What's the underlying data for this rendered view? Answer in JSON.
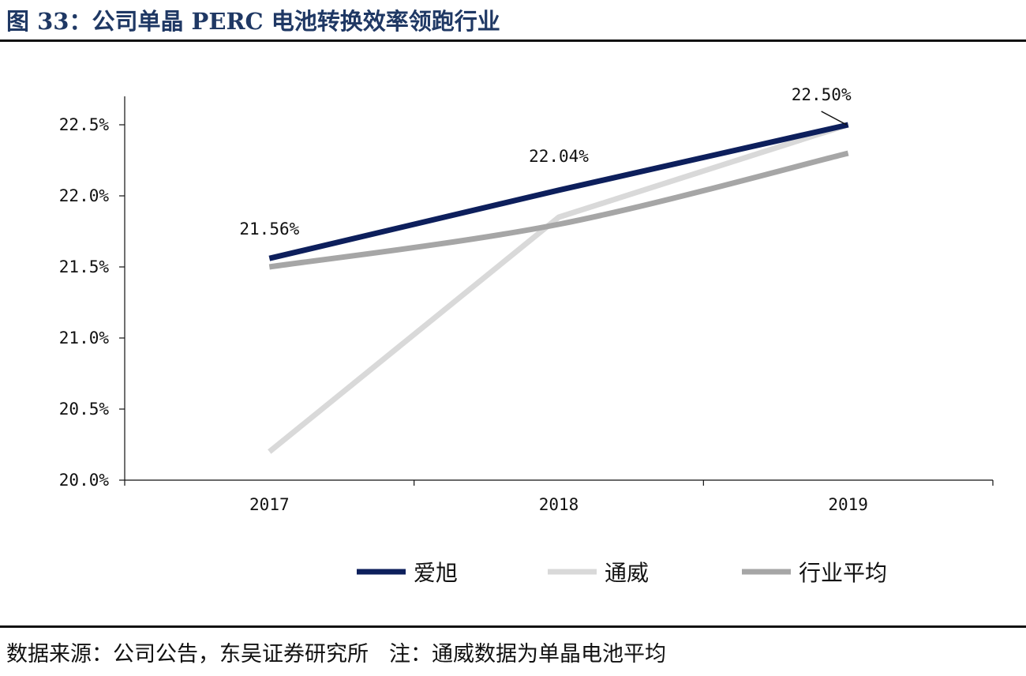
{
  "figure_title": "图 33：公司单晶 PERC 电池转换效率领跑行业",
  "source": {
    "text": "数据来源：公司公告，东吴证券研究所",
    "note": "注：通威数据为单晶电池平均"
  },
  "chart_data": {
    "type": "line",
    "title": "",
    "xlabel": "",
    "ylabel": "",
    "categories": [
      "2017",
      "2018",
      "2019"
    ],
    "ylim": [
      20.0,
      22.8
    ],
    "yticks": [
      20.0,
      20.5,
      21.0,
      21.5,
      22.0,
      22.5
    ],
    "ytick_labels": [
      "20.0%",
      "20.5%",
      "21.0%",
      "21.5%",
      "22.0%",
      "22.5%"
    ],
    "grid": false,
    "legend_position": "bottom",
    "series": [
      {
        "name": "爱旭",
        "values": [
          21.56,
          22.04,
          22.5
        ],
        "color": "#0d1f5c",
        "data_labels": [
          "21.56%",
          "22.04%",
          "22.50%"
        ]
      },
      {
        "name": "通威",
        "values": [
          20.2,
          21.85,
          22.5
        ],
        "color": "#d9d9d9"
      },
      {
        "name": "行业平均",
        "values": [
          21.5,
          21.8,
          22.3
        ],
        "color": "#a6a6a6"
      }
    ]
  }
}
